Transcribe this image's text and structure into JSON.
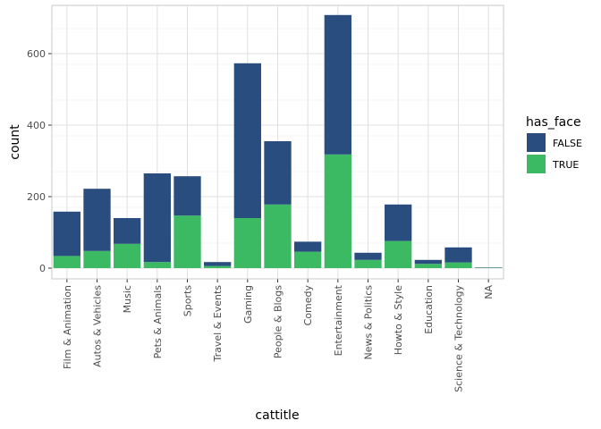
{
  "chart_data": {
    "type": "bar",
    "stacked": true,
    "xlabel": "cattitle",
    "ylabel": "count",
    "ylim": [
      -30,
      735
    ],
    "yticks": [
      0,
      200,
      400,
      600
    ],
    "grid": true,
    "legend_position": "right",
    "legend": {
      "title": "has_face",
      "entries": [
        "FALSE",
        "TRUE"
      ]
    },
    "colors": {
      "FALSE": "#2a4d7f",
      "TRUE": "#3cb963"
    },
    "categories": [
      "Film & Animation",
      "Autos & Vehicles",
      "Music",
      "Pets & Animals",
      "Sports",
      "Travel & Events",
      "Gaming",
      "People & Blogs",
      "Comedy",
      "Entertainment",
      "News & Politics",
      "Howto & Style",
      "Education",
      "Science & Technology",
      "NA"
    ],
    "series": [
      {
        "name": "TRUE",
        "values": [
          34,
          48,
          68,
          17,
          147,
          6,
          140,
          178,
          46,
          318,
          23,
          76,
          12,
          16,
          1
        ]
      },
      {
        "name": "FALSE",
        "values": [
          124,
          174,
          72,
          248,
          110,
          11,
          433,
          177,
          28,
          390,
          20,
          102,
          11,
          42,
          1
        ]
      }
    ]
  }
}
